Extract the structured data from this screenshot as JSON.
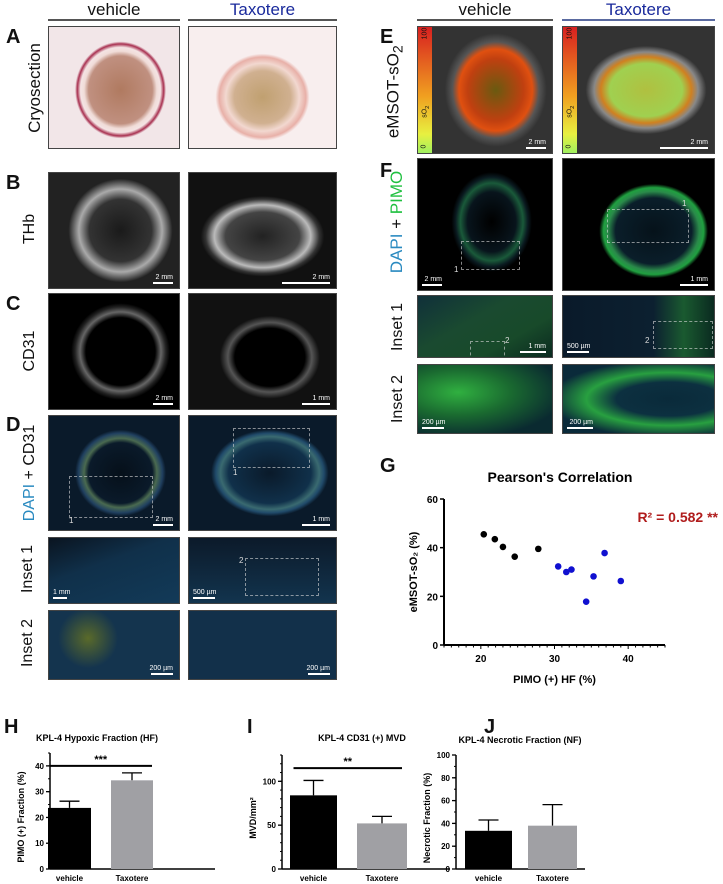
{
  "columns": {
    "vehicle": "vehicle",
    "treated": "Taxotere",
    "treated_color": "#1a2a9c"
  },
  "panels": {
    "A": {
      "letter": "A",
      "row_label": "Cryosection"
    },
    "B": {
      "letter": "B",
      "row_label": "THb",
      "scale_left": "2 mm",
      "scale_right": "2 mm"
    },
    "C": {
      "letter": "C",
      "row_label": "CD31",
      "scale_left": "2 mm",
      "scale_right": "1 mm"
    },
    "D": {
      "letter": "D",
      "row_label_a": "DAPI",
      "row_label_plus": " + ",
      "row_label_b": "CD31",
      "scale_left": "2 mm",
      "scale_right": "1 mm",
      "box_label_left": "1",
      "box_label_right": "1",
      "inset1": {
        "label": "Inset 1",
        "scale_left": "1 mm",
        "scale_right": "500 µm",
        "box_label_right": "2"
      },
      "inset2": {
        "label": "Inset 2",
        "scale_left": "200 µm",
        "scale_right": "200 µm"
      }
    },
    "E": {
      "letter": "E",
      "row_label": "eMSOT-sO",
      "row_label_sub": "2",
      "colorbar_max": "100",
      "colorbar_min": "0",
      "colorbar_label": "sO",
      "colorbar_label_sub": "2",
      "scale_left": "2 mm",
      "scale_right": "2 mm"
    },
    "F": {
      "letter": "F",
      "row_label_a": "DAPI",
      "row_label_plus": " + ",
      "row_label_b": "PIMO",
      "scale_left": "2 mm",
      "scale_right": "1 mm",
      "box_label_left": "1",
      "box_label_right": "1",
      "inset1": {
        "label": "Inset 1",
        "scale_left": "1 mm",
        "scale_right": "500 µm",
        "box_label_left": "2",
        "box_label_right": "2"
      },
      "inset2": {
        "label": "Inset 2",
        "scale_left": "200 µm",
        "scale_right": "200 µm"
      }
    },
    "G": {
      "letter": "G"
    },
    "H": {
      "letter": "H"
    },
    "I": {
      "letter": "I"
    },
    "J": {
      "letter": "J"
    }
  },
  "chart_data": [
    {
      "id": "G",
      "type": "scatter",
      "title": "Pearson's Correlation",
      "xlabel": "PIMO (+) HF (%)",
      "ylabel": "eMSOT-sO₂ (%)",
      "xlim": [
        15,
        45
      ],
      "ylim": [
        0,
        60
      ],
      "xticks": [
        20,
        30,
        40
      ],
      "yticks": [
        0,
        20,
        40,
        60
      ],
      "annotation": "R² = 0.582 **",
      "annotation_color": "#b01c1c",
      "series": [
        {
          "color": "#000000",
          "points": [
            [
              20.4,
              45.5
            ],
            [
              21.9,
              43.5
            ],
            [
              23.0,
              40.3
            ],
            [
              24.6,
              36.3
            ],
            [
              27.8,
              39.5
            ]
          ]
        },
        {
          "color": "#1010d0",
          "points": [
            [
              30.5,
              32.3
            ],
            [
              31.6,
              30.0
            ],
            [
              32.3,
              31.0
            ],
            [
              34.3,
              17.8
            ],
            [
              35.3,
              28.2
            ],
            [
              36.8,
              37.8
            ],
            [
              39.0,
              26.3
            ]
          ]
        }
      ]
    },
    {
      "id": "H",
      "type": "bar",
      "title": "KPL-4 Hypoxic Fraction (HF)",
      "ylabel": "PIMO (+) Fraction (%)",
      "categories": [
        "vehicle",
        "Taxotere"
      ],
      "values": [
        23.7,
        34.4
      ],
      "errors": [
        2.6,
        2.9
      ],
      "colors": [
        "#000000",
        "#a0a0a4"
      ],
      "ylim": [
        0,
        45
      ],
      "yticks": [
        0,
        10,
        20,
        30,
        40
      ],
      "significance": "***",
      "sig_level": 40
    },
    {
      "id": "I",
      "type": "bar",
      "title": "KPL-4 CD31 (+) MVD",
      "ylabel": "MVD/mm²",
      "categories": [
        "vehicle",
        "Taxotere"
      ],
      "values": [
        84,
        52
      ],
      "errors": [
        17,
        8
      ],
      "colors": [
        "#000000",
        "#a0a0a4"
      ],
      "ylim": [
        0,
        130
      ],
      "yticks": [
        0,
        50,
        100
      ],
      "significance": "**",
      "sig_level": 115
    },
    {
      "id": "J",
      "type": "bar",
      "title": "KPL-4 Necrotic Fraction (NF)",
      "ylabel": "Necrotic Fraction (%)",
      "categories": [
        "vehicle",
        "Taxotere"
      ],
      "values": [
        33.5,
        38
      ],
      "errors": [
        9.5,
        18.5
      ],
      "colors": [
        "#000000",
        "#a0a0a4"
      ],
      "ylim": [
        0,
        100
      ],
      "yticks": [
        0,
        20,
        40,
        60,
        80,
        100
      ]
    }
  ]
}
